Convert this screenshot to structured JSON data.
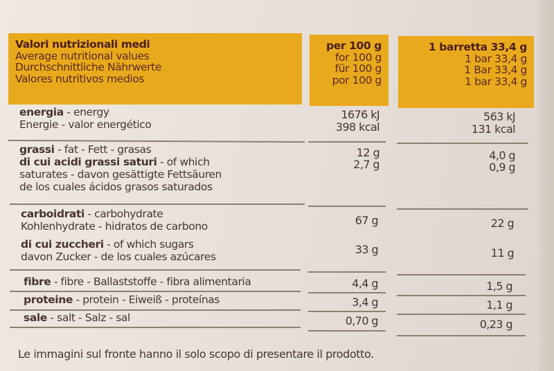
{
  "header": {
    "label_lines": [
      "Valori nutrizionali medi",
      "Average nutritional values",
      "Durchschnittliche Nährwerte",
      "Valores nutritivos medios"
    ],
    "per100_lines": [
      "per 100 g",
      "for 100 g",
      "für 100 g",
      "por 100 g"
    ],
    "perbar_lines": [
      "1 barretta 33,4 g",
      "1 bar 33,4 g",
      "1 Bar 33,4 g",
      "1 bar 33,4 g"
    ]
  },
  "rows": [
    {
      "bold": "energia",
      "rest": " - energy",
      "line2": "Energie - valor energético",
      "v100": [
        "1676 kJ",
        "398 kcal"
      ],
      "vbar": [
        "563 kJ",
        "131 kcal"
      ]
    },
    {
      "bold": "grassi",
      "rest": " - fat - Fett - grasas",
      "v100": [
        "12 g"
      ],
      "vbar": [
        "4,0 g"
      ]
    },
    {
      "bold": "di cui acidi grassi saturi",
      "rest": " - of which",
      "line2": "saturates - davon gesättigte Fettsäuren",
      "line3": "de los cuales ácidos grasos saturados",
      "v100": [
        "2,7 g"
      ],
      "vbar": [
        "0,9 g"
      ]
    },
    {
      "bold": "carboidrati",
      "rest": " - carbohydrate",
      "line2": "Kohlenhydrate - hidratos de carbono",
      "v100": [
        "67 g"
      ],
      "vbar": [
        "22 g"
      ]
    },
    {
      "bold": "di cui zuccheri",
      "rest": " - of which sugars",
      "line2": "davon Zucker - de los cuales azúcares",
      "v100": [
        "33 g"
      ],
      "vbar": [
        "11 g"
      ]
    },
    {
      "bold": "fibre",
      "rest": " - fibre - Ballaststoffe - fibra alimentaria",
      "v100": [
        "4,4 g"
      ],
      "vbar": [
        "1,5 g"
      ]
    },
    {
      "bold": "proteine",
      "rest": " - protein - Eiweiß - proteínas",
      "v100": [
        "3,4 g"
      ],
      "vbar": [
        "1,1 g"
      ]
    },
    {
      "bold": "sale",
      "rest": " - salt - Salz - sal",
      "v100": [
        "0,70 g"
      ],
      "vbar": [
        "0,23 g"
      ]
    }
  ],
  "footer": "Le immagini sul fronte hanno il solo scopo di presentare il prodotto.",
  "colors": {
    "header_bg": "#e9a91c",
    "text": "#4a3530"
  }
}
